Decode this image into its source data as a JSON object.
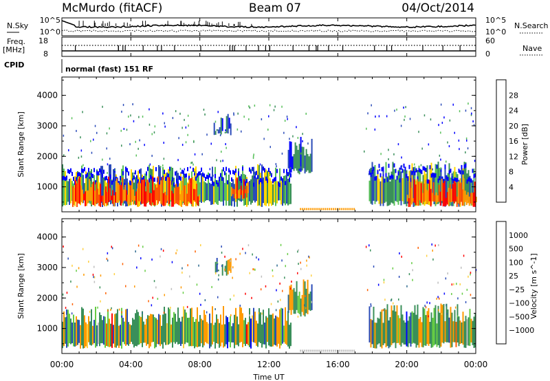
{
  "header": {
    "station": "McMurdo (fitACF)",
    "beam": "Beam 07",
    "date": "04/Oct/2014"
  },
  "status_panel": {
    "left_labels": {
      "nsky": "N.Sky",
      "freq": "Freq.",
      "freq_unit": "[MHz]",
      "cpid": "CPID"
    },
    "right_labels": {
      "nsearch": "N.Search",
      "nave": "Nave"
    },
    "noise_ticks_left": [
      "10^5",
      "10^0"
    ],
    "noise_ticks_right": [
      "10^5",
      "10^0"
    ],
    "freq_ticks": [
      "18",
      "8"
    ],
    "nave_ticks": [
      "60",
      "0"
    ],
    "cpid_text": "normal (fast) 151 RF"
  },
  "x_axis": {
    "label": "Time UT",
    "ticks": [
      "00:00",
      "04:00",
      "08:00",
      "12:00",
      "16:00",
      "20:00",
      "00:00"
    ],
    "range_hours": [
      0,
      24
    ]
  },
  "colors": {
    "power_scale": [
      "#0000ff",
      "#2a4bb8",
      "#3a8f5a",
      "#58c05a",
      "#ffd700",
      "#ff9a00",
      "#ff5000",
      "#ff0000"
    ],
    "velocity_scale": [
      "#ff0000",
      "#ff6000",
      "#ff9a00",
      "#ffd040",
      "#bebebe",
      "#66cc44",
      "#3a8f5a",
      "#2d6a8f",
      "#2a4bb8",
      "#0000ff"
    ]
  },
  "chart_data": [
    {
      "type": "heatmap",
      "name": "power-panel",
      "ylabel": "Slant Range [km]",
      "ylim": [
        180,
        4600
      ],
      "yticks": [
        "1000",
        "2000",
        "3000",
        "4000"
      ],
      "xlim": [
        0,
        24
      ],
      "colorbar": {
        "label": "Power [dB]",
        "ticks": [
          "4",
          "8",
          "12",
          "16",
          "20",
          "24",
          "28"
        ],
        "range": [
          0,
          32
        ]
      },
      "regions": [
        {
          "t0": 0.0,
          "t1": 13.3,
          "r0": 450,
          "r1": 1400,
          "level": "mid"
        },
        {
          "t0": 0.6,
          "t1": 8.0,
          "r0": 450,
          "r1": 1000,
          "level": "high"
        },
        {
          "t0": 9.8,
          "t1": 10.8,
          "r0": 700,
          "r1": 1000,
          "level": "high"
        },
        {
          "t0": 8.8,
          "t1": 9.8,
          "r0": 2800,
          "r1": 3050,
          "level": "low"
        },
        {
          "t0": 13.1,
          "t1": 14.5,
          "r0": 1500,
          "r1": 2300,
          "level": "low"
        },
        {
          "t0": 17.8,
          "t1": 24.0,
          "r0": 450,
          "r1": 1500,
          "level": "mid"
        },
        {
          "t0": 20.0,
          "t1": 24.0,
          "r0": 450,
          "r1": 950,
          "level": "high"
        }
      ]
    },
    {
      "type": "heatmap",
      "name": "velocity-panel",
      "ylabel": "Slant Range [km]",
      "ylim": [
        180,
        4600
      ],
      "yticks": [
        "1000",
        "2000",
        "3000",
        "4000"
      ],
      "xlim": [
        0,
        24
      ],
      "colorbar": {
        "label": "Velocity [m s^-1]",
        "ticks": [
          "1000",
          "500",
          "100",
          "25",
          "−25",
          "−100",
          "−500",
          "−1000"
        ]
      },
      "regions": [
        {
          "t0": 0.0,
          "t1": 13.3,
          "r0": 450,
          "r1": 1400,
          "level": "mixed"
        },
        {
          "t0": 8.8,
          "t1": 9.8,
          "r0": 2800,
          "r1": 3050,
          "level": "mixed"
        },
        {
          "t0": 13.1,
          "t1": 14.5,
          "r0": 1500,
          "r1": 2300,
          "level": "mixed"
        },
        {
          "t0": 17.8,
          "t1": 24.0,
          "r0": 450,
          "r1": 1500,
          "level": "mixed"
        }
      ]
    }
  ]
}
